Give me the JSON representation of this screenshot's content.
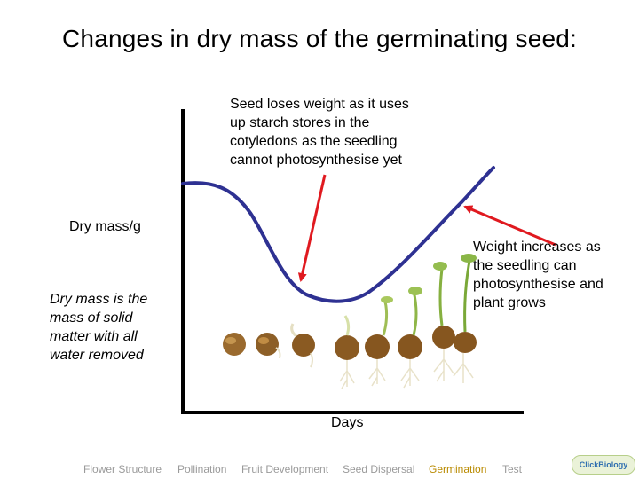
{
  "title": "Changes in dry mass of the germinating seed:",
  "axes": {
    "y_label": "Dry mass/g",
    "x_label": "Days"
  },
  "callouts": {
    "top_lines": [
      "Seed loses weight as it uses",
      "up starch stores in the",
      "cotyledons as the seedling",
      "cannot photosynthesise yet"
    ],
    "right_lines": [
      "Weight increases as",
      "the seedling can",
      "photosynthesise and",
      "plant grows"
    ]
  },
  "definition_lines": [
    "Dry mass is the",
    "mass of solid",
    "matter with all",
    "water removed"
  ],
  "colors": {
    "curve": "#2e3192",
    "arrow": "#e0191f",
    "axis": "#000000"
  },
  "nav": [
    {
      "label": "Flower Structure",
      "active": false
    },
    {
      "label": "Pollination",
      "active": false
    },
    {
      "label": "Fruit Development",
      "active": false
    },
    {
      "label": "Seed Dispersal",
      "active": false
    },
    {
      "label": "Germination",
      "active": true
    },
    {
      "label": "Test",
      "active": false
    }
  ],
  "logo": "ClickBiology"
}
